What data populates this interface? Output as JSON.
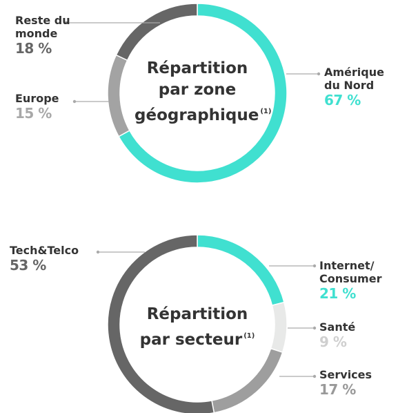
{
  "chart_data": [
    {
      "type": "pie",
      "title": "Répartition par zone géographique",
      "note": "(1)",
      "categories": [
        "Amérique du Nord",
        "Europe",
        "Reste du monde"
      ],
      "values": [
        67,
        15,
        18
      ],
      "value_labels": [
        "67 %",
        "15 %",
        "18 %"
      ],
      "colors": [
        "#40e0d0",
        "#a3a3a3",
        "#666666"
      ],
      "label_colors": [
        "#40e0d0",
        "#a8a8a8",
        "#666666"
      ]
    },
    {
      "type": "pie",
      "title": "Répartition par secteur",
      "note": "(1)",
      "categories": [
        "Internet/ Consumer",
        "Santé",
        "Services",
        "Tech&Telco"
      ],
      "values": [
        21,
        9,
        17,
        53
      ],
      "value_labels": [
        "21 %",
        "9 %",
        "17 %",
        "53 %"
      ],
      "colors": [
        "#40e0d0",
        "#e8e9e8",
        "#9e9e9e",
        "#666666"
      ],
      "label_colors": [
        "#40e0d0",
        "#cfcfcf",
        "#999999",
        "#666666"
      ]
    }
  ]
}
